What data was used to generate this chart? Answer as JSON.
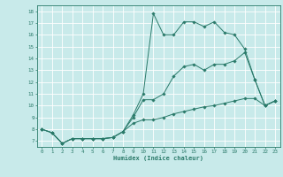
{
  "xlabel": "Humidex (Indice chaleur)",
  "bg_color": "#c8eaea",
  "line_color": "#2a7a6a",
  "grid_color": "#ffffff",
  "xlim": [
    -0.5,
    23.5
  ],
  "ylim": [
    6.5,
    18.5
  ],
  "xticks": [
    0,
    1,
    2,
    3,
    4,
    5,
    6,
    7,
    8,
    9,
    10,
    11,
    12,
    13,
    14,
    15,
    16,
    17,
    18,
    19,
    20,
    21,
    22,
    23
  ],
  "yticks": [
    7,
    8,
    9,
    10,
    11,
    12,
    13,
    14,
    15,
    16,
    17,
    18
  ],
  "line1_x": [
    0,
    1,
    2,
    3,
    4,
    5,
    6,
    7,
    8,
    9,
    10,
    11,
    12,
    13,
    14,
    15,
    16,
    17,
    18,
    19,
    20,
    21,
    22,
    23
  ],
  "line1_y": [
    8.0,
    7.7,
    6.8,
    7.2,
    7.2,
    7.2,
    7.2,
    7.3,
    7.8,
    9.2,
    11.0,
    17.8,
    16.0,
    16.0,
    17.1,
    17.1,
    16.7,
    17.1,
    16.2,
    16.0,
    14.8,
    12.2,
    10.0,
    10.4
  ],
  "line2_x": [
    0,
    1,
    2,
    3,
    4,
    5,
    6,
    7,
    8,
    9,
    10,
    11,
    12,
    13,
    14,
    15,
    16,
    17,
    18,
    19,
    20,
    21,
    22,
    23
  ],
  "line2_y": [
    8.0,
    7.7,
    6.8,
    7.2,
    7.2,
    7.2,
    7.2,
    7.3,
    7.8,
    9.0,
    10.5,
    10.5,
    11.0,
    12.5,
    13.3,
    13.5,
    13.0,
    13.5,
    13.5,
    13.8,
    14.5,
    12.2,
    10.0,
    10.4
  ],
  "line3_x": [
    0,
    1,
    2,
    3,
    4,
    5,
    6,
    7,
    8,
    9,
    10,
    11,
    12,
    13,
    14,
    15,
    16,
    17,
    18,
    19,
    20,
    21,
    22,
    23
  ],
  "line3_y": [
    8.0,
    7.7,
    6.8,
    7.2,
    7.2,
    7.2,
    7.2,
    7.3,
    7.8,
    8.5,
    8.8,
    8.8,
    9.0,
    9.3,
    9.5,
    9.7,
    9.9,
    10.0,
    10.2,
    10.4,
    10.6,
    10.6,
    10.0,
    10.4
  ]
}
